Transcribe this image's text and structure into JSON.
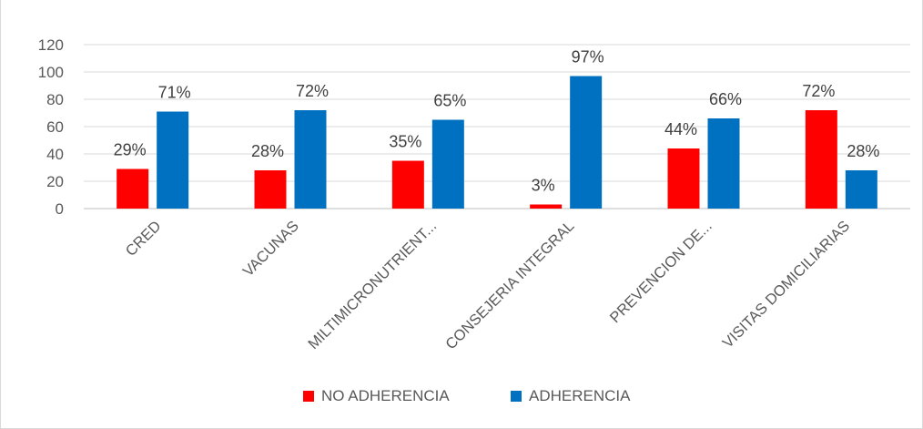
{
  "chart_data": {
    "type": "bar",
    "categories": [
      "CRED",
      "VACUNAS",
      "MILTIMICRONUTRIENT...",
      "CONSEJERIA INTEGRAL",
      "PREVENCION DE...",
      "VISITAS DOMICILIARIAS"
    ],
    "series": [
      {
        "name": "NO ADHERENCIA",
        "color": "#ff0000",
        "values": [
          29,
          28,
          35,
          3,
          44,
          72
        ],
        "labels": [
          "29%",
          "28%",
          "35%",
          "3%",
          "44%",
          "72%"
        ]
      },
      {
        "name": "ADHERENCIA",
        "color": "#0070c0",
        "values": [
          71,
          72,
          65,
          97,
          66,
          28
        ],
        "labels": [
          "71%",
          "72%",
          "65%",
          "97%",
          "66%",
          "28%"
        ]
      }
    ],
    "ylim": [
      0,
      120
    ],
    "yticks": [
      0,
      20,
      40,
      60,
      80,
      100,
      120
    ],
    "grid": true,
    "legend_position": "bottom-center"
  }
}
